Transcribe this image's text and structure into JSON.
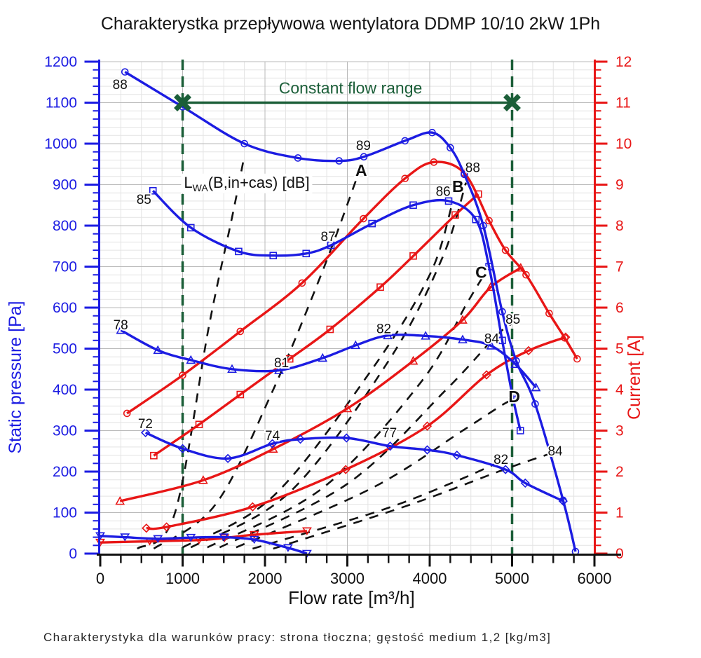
{
  "page": {
    "title": "Charakterystka przepływowa wentylatora DDMP 10/10 2kW 1Ph",
    "caption": "Charakterystyka dla warunków pracy: strona tłoczna; gęstość medium 1,2 [kg/m3]"
  },
  "chart_data": {
    "type": "line",
    "title": "Charakterystka przepływowa wentylatora DDMP 10/10 2kW 1Ph",
    "xlabel": "Flow rate [m³/h]",
    "ylabel_left": "Static pressure [Pa]",
    "ylabel_right": "Current [A]",
    "x_range": [
      0,
      6000
    ],
    "x_tick_step": 1000,
    "x_minor_step": 250,
    "y_left_range": [
      0,
      1200
    ],
    "y_left_tick_step": 100,
    "y_left_minor_step": 20,
    "y_right_range": [
      0,
      12
    ],
    "y_right_tick_step": 1,
    "y_right_minor_step": 0.2,
    "grid": true,
    "colors": {
      "pressure": "#1c1ce2",
      "current": "#e81616",
      "noise": "#121212",
      "annotation_green": "#1b5e38",
      "grid_major": "#b9b9b9",
      "grid_minor": "#e3e3e3",
      "axis_black": "#111111"
    },
    "pressure_curves": [
      {
        "name": "pressure speed 1",
        "marker": "circle",
        "axis": "left",
        "points": [
          [
            300,
            1175
          ],
          [
            1000,
            1090
          ],
          [
            1750,
            1000
          ],
          [
            2400,
            965
          ],
          [
            2900,
            958
          ],
          [
            3200,
            968
          ],
          [
            3700,
            1007
          ],
          [
            4030,
            1027
          ],
          [
            4250,
            990
          ],
          [
            4420,
            925
          ],
          [
            4650,
            800
          ],
          [
            4880,
            590
          ],
          [
            5050,
            470
          ],
          [
            5280,
            365
          ],
          [
            5620,
            130
          ],
          [
            5770,
            5
          ]
        ]
      },
      {
        "name": "pressure speed 2",
        "marker": "square",
        "axis": "left",
        "points": [
          [
            640,
            885
          ],
          [
            1100,
            795
          ],
          [
            1680,
            737
          ],
          [
            2100,
            727
          ],
          [
            2500,
            732
          ],
          [
            2800,
            752
          ],
          [
            3300,
            805
          ],
          [
            3800,
            850
          ],
          [
            4230,
            860
          ],
          [
            4560,
            815
          ],
          [
            4720,
            700
          ],
          [
            4880,
            520
          ],
          [
            5000,
            390
          ],
          [
            5100,
            300
          ]
        ]
      },
      {
        "name": "pressure speed 3",
        "marker": "triangle",
        "axis": "left",
        "points": [
          [
            250,
            545
          ],
          [
            700,
            496
          ],
          [
            1100,
            472
          ],
          [
            1600,
            450
          ],
          [
            2170,
            447
          ],
          [
            2700,
            477
          ],
          [
            3100,
            508
          ],
          [
            3490,
            532
          ],
          [
            3950,
            531
          ],
          [
            4400,
            522
          ],
          [
            4745,
            507
          ],
          [
            5040,
            462
          ],
          [
            5290,
            405
          ]
        ]
      },
      {
        "name": "pressure speed 4",
        "marker": "diamond",
        "axis": "left",
        "points": [
          [
            550,
            295
          ],
          [
            1000,
            256
          ],
          [
            1550,
            232
          ],
          [
            2090,
            268
          ],
          [
            2430,
            279
          ],
          [
            2990,
            282
          ],
          [
            3520,
            262
          ],
          [
            3970,
            253
          ],
          [
            4330,
            240
          ],
          [
            4920,
            205
          ],
          [
            5160,
            172
          ],
          [
            5620,
            128
          ]
        ]
      },
      {
        "name": "pressure minimum",
        "marker": "tridown",
        "axis": "left",
        "points": [
          [
            0,
            43
          ],
          [
            300,
            40
          ],
          [
            700,
            36
          ],
          [
            1100,
            39
          ],
          [
            1500,
            40
          ],
          [
            1870,
            34
          ],
          [
            2280,
            14
          ],
          [
            2510,
            0
          ]
        ]
      }
    ],
    "current_curves": [
      {
        "name": "current speed 1",
        "marker": "circle",
        "axis": "right",
        "points": [
          [
            325,
            3.42
          ],
          [
            1000,
            4.35
          ],
          [
            1700,
            5.42
          ],
          [
            2450,
            6.6
          ],
          [
            3195,
            8.17
          ],
          [
            3700,
            9.15
          ],
          [
            4050,
            9.55
          ],
          [
            4420,
            9.28
          ],
          [
            4720,
            8.12
          ],
          [
            4920,
            7.4
          ],
          [
            5170,
            6.8
          ],
          [
            5450,
            5.86
          ],
          [
            5640,
            5.26
          ],
          [
            5790,
            4.75
          ]
        ]
      },
      {
        "name": "current speed 2",
        "marker": "square",
        "axis": "right",
        "points": [
          [
            650,
            2.39
          ],
          [
            1200,
            3.15
          ],
          [
            1700,
            3.88
          ],
          [
            2300,
            4.75
          ],
          [
            2790,
            5.47
          ],
          [
            3400,
            6.5
          ],
          [
            3800,
            7.26
          ],
          [
            4310,
            8.26
          ],
          [
            4590,
            8.77
          ]
        ]
      },
      {
        "name": "current speed 3",
        "marker": "triangle",
        "axis": "right",
        "points": [
          [
            240,
            1.28
          ],
          [
            1250,
            1.79
          ],
          [
            2100,
            2.55
          ],
          [
            3000,
            3.54
          ],
          [
            3800,
            4.7
          ],
          [
            4400,
            5.7
          ],
          [
            4740,
            6.5
          ],
          [
            5105,
            6.97
          ]
        ]
      },
      {
        "name": "current speed 4",
        "marker": "diamond",
        "axis": "right",
        "points": [
          [
            560,
            0.62
          ],
          [
            805,
            0.65
          ],
          [
            1850,
            1.14
          ],
          [
            2980,
            2.05
          ],
          [
            3970,
            3.11
          ],
          [
            4690,
            4.36
          ],
          [
            5200,
            4.95
          ],
          [
            5650,
            5.28
          ]
        ]
      },
      {
        "name": "current minimum",
        "marker": "tridown",
        "axis": "right",
        "points": [
          [
            0,
            0.27
          ],
          [
            600,
            0.3
          ],
          [
            1200,
            0.33
          ],
          [
            1510,
            0.38
          ],
          [
            1870,
            0.46
          ],
          [
            2510,
            0.55
          ]
        ]
      }
    ],
    "noise_curves_dashed": [
      {
        "points": [
          [
            450,
            12
          ],
          [
            900,
            95
          ],
          [
            1320,
            555
          ],
          [
            1600,
            820
          ],
          [
            1740,
            960
          ]
        ]
      },
      {
        "points": [
          [
            650,
            12
          ],
          [
            1400,
            120
          ],
          [
            2100,
            400
          ],
          [
            2700,
            690
          ],
          [
            3140,
            930
          ]
        ]
      },
      {
        "points": [
          [
            1000,
            15
          ],
          [
            2100,
            140
          ],
          [
            3300,
            450
          ],
          [
            4000,
            680
          ],
          [
            4270,
            850
          ]
        ]
      },
      {
        "points": [
          [
            1100,
            15
          ],
          [
            2300,
            150
          ],
          [
            3500,
            470
          ],
          [
            4150,
            720
          ],
          [
            4440,
            905
          ]
        ]
      },
      {
        "points": [
          [
            1300,
            15
          ],
          [
            2700,
            160
          ],
          [
            3900,
            420
          ],
          [
            4450,
            610
          ],
          [
            4660,
            680
          ]
        ]
      },
      {
        "points": [
          [
            1450,
            15
          ],
          [
            3000,
            170
          ],
          [
            4200,
            400
          ],
          [
            4800,
            530
          ],
          [
            4990,
            560
          ]
        ]
      },
      {
        "points": [
          [
            1650,
            15
          ],
          [
            3300,
            160
          ],
          [
            4400,
            300
          ],
          [
            4900,
            365
          ],
          [
            5010,
            372
          ]
        ]
      },
      {
        "points": [
          [
            1850,
            12
          ],
          [
            3400,
            105
          ],
          [
            4300,
            175
          ],
          [
            4830,
            222
          ]
        ]
      },
      {
        "points": [
          [
            2100,
            12
          ],
          [
            3700,
            115
          ],
          [
            4900,
            205
          ],
          [
            5480,
            245
          ]
        ]
      }
    ],
    "noise_legend": {
      "pre": "L",
      "sub": "WA",
      "post": "(B,in+cas) [dB]"
    },
    "point_labels": [
      {
        "text": "88",
        "flow": 240,
        "pa": 1145,
        "bold": false
      },
      {
        "text": "89",
        "flow": 3195,
        "pa": 997,
        "bold": false
      },
      {
        "text": "A",
        "flow": 3169,
        "pa": 933,
        "bold": true
      },
      {
        "text": "85",
        "flow": 530,
        "pa": 865,
        "bold": false
      },
      {
        "text": "87",
        "flow": 2767,
        "pa": 774,
        "bold": false
      },
      {
        "text": "86",
        "flow": 4163,
        "pa": 885,
        "bold": false
      },
      {
        "text": "B",
        "flow": 4343,
        "pa": 894,
        "bold": true
      },
      {
        "text": "88",
        "flow": 4522,
        "pa": 943,
        "bold": false
      },
      {
        "text": "C",
        "flow": 4625,
        "pa": 685,
        "bold": true
      },
      {
        "text": "85",
        "flow": 5010,
        "pa": 573,
        "bold": false
      },
      {
        "text": "84",
        "flow": 4753,
        "pa": 526,
        "bold": false
      },
      {
        "text": "78",
        "flow": 248,
        "pa": 559,
        "bold": false
      },
      {
        "text": "81",
        "flow": 2201,
        "pa": 467,
        "bold": false
      },
      {
        "text": "82",
        "flow": 3443,
        "pa": 550,
        "bold": false
      },
      {
        "text": "72",
        "flow": 548,
        "pa": 318,
        "bold": false
      },
      {
        "text": "74",
        "flow": 2090,
        "pa": 289,
        "bold": false
      },
      {
        "text": "77",
        "flow": 3512,
        "pa": 296,
        "bold": false
      },
      {
        "text": "D",
        "flow": 5027,
        "pa": 381,
        "bold": true
      },
      {
        "text": "82",
        "flow": 4865,
        "pa": 231,
        "bold": false
      },
      {
        "text": "84",
        "flow": 5524,
        "pa": 251,
        "bold": false
      }
    ],
    "annotation": {
      "text": "Constant flow range",
      "flow_from": 1000,
      "flow_to": 5000,
      "pa": 1100
    }
  }
}
